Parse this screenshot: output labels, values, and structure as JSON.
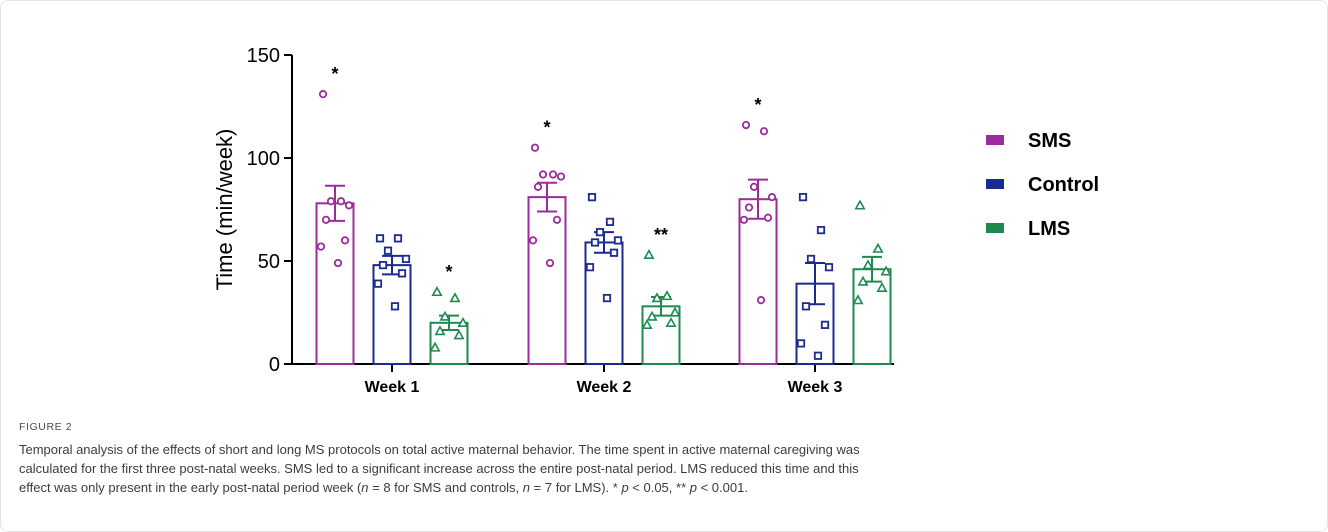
{
  "chart_data": {
    "type": "bar",
    "ylabel": "Time (min/week)",
    "xlabel": "",
    "ylim": [
      0,
      150
    ],
    "yticks": [
      0,
      50,
      100,
      150
    ],
    "categories": [
      "Week 1",
      "Week 2",
      "Week 3"
    ],
    "legend_position": "right",
    "error_bars": "SEM",
    "series": [
      {
        "name": "SMS",
        "color": "#9b2c9b",
        "marker": "circle",
        "values": [
          78,
          81,
          80
        ],
        "errors": [
          8.5,
          7,
          9.5
        ],
        "points": [
          [
            131,
            79,
            79,
            77,
            70,
            60,
            57,
            49
          ],
          [
            105,
            92,
            92,
            91,
            86,
            70,
            60,
            49
          ],
          [
            116,
            113,
            86,
            81,
            76,
            71,
            70,
            31
          ]
        ],
        "significance": [
          "*",
          "*",
          "*"
        ]
      },
      {
        "name": "Control",
        "color": "#1b2a8f",
        "marker": "square",
        "values": [
          48,
          59,
          39
        ],
        "errors": [
          4.5,
          5,
          10
        ],
        "points": [
          [
            61,
            61,
            55,
            51,
            48,
            44,
            39,
            28
          ],
          [
            81,
            69,
            64,
            60,
            59,
            54,
            47,
            32
          ],
          [
            81,
            65,
            51,
            47,
            28,
            19,
            10,
            4
          ]
        ],
        "significance": [
          "",
          "",
          ""
        ]
      },
      {
        "name": "LMS",
        "color": "#1e8a50",
        "marker": "triangle",
        "values": [
          20,
          28,
          46
        ],
        "errors": [
          3.5,
          4.5,
          6
        ],
        "points": [
          [
            35,
            32,
            23,
            20,
            16,
            14,
            8
          ],
          [
            53,
            33,
            32,
            25,
            23,
            20,
            19
          ],
          [
            77,
            56,
            48,
            45,
            40,
            37,
            31
          ]
        ],
        "significance": [
          "*",
          "**",
          ""
        ]
      }
    ]
  },
  "figure": {
    "label": "FIGURE 2"
  },
  "caption": {
    "line1": "Temporal analysis of the effects of short and long MS protocols on total active maternal behavior. The time spent in active maternal caregiving was",
    "line2": "calculated for the first three post-natal weeks. SMS led to a significant increase across the entire post-natal period. LMS reduced this time and this",
    "line3_a": "effect was only present in the early post-natal period week (",
    "n1": "n",
    "line3_b": " = 8 for SMS and controls, ",
    "n2": "n",
    "line3_c": " = 7 for LMS). * ",
    "p1": "p",
    "line3_d": " < 0.05, ** ",
    "p2": "p",
    "line3_e": " < 0.001."
  }
}
